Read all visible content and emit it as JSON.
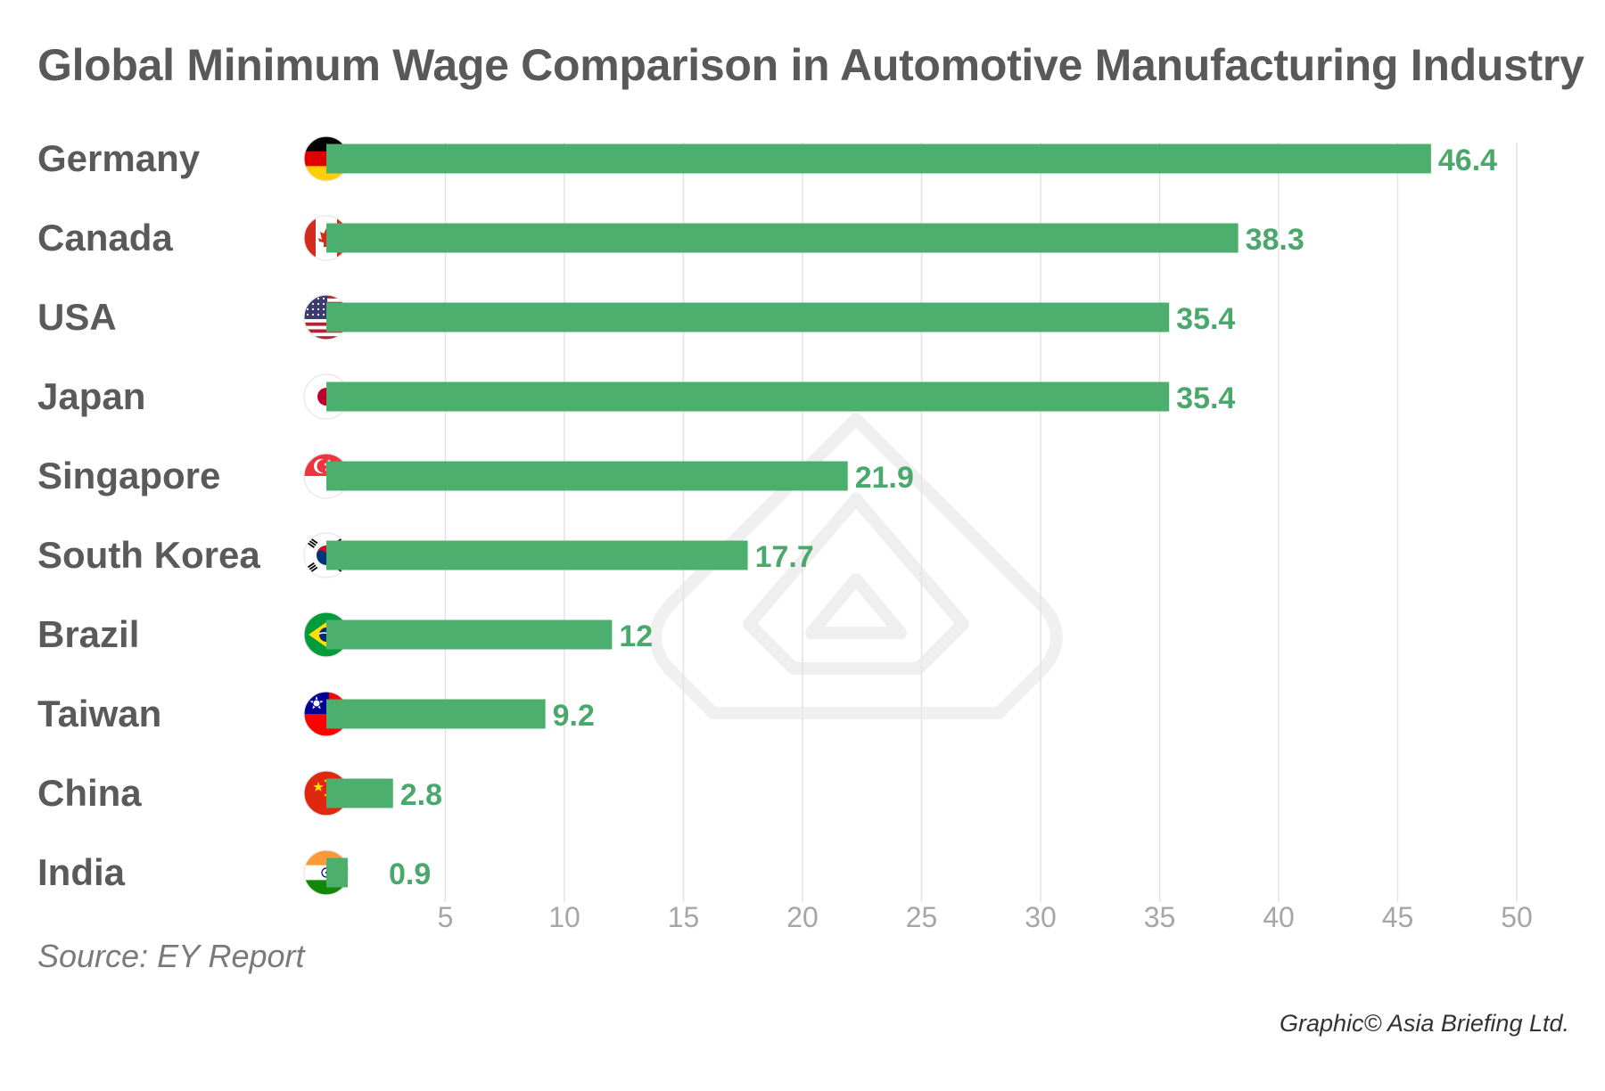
{
  "title": "Global Minimum Wage Comparison in Automotive Manufacturing Industry",
  "source": "Source: EY Report",
  "credit": "Graphic© Asia Briefing Ltd.",
  "colors": {
    "bar": "#4caf6e",
    "value_label": "#4aa86c",
    "category_label": "#5a5a5a",
    "grid": "#e3e3e3",
    "tick": "#a6a6a6"
  },
  "chart_data": {
    "type": "bar",
    "orientation": "horizontal",
    "title": "Global Minimum Wage Comparison in Automotive Manufacturing Industry",
    "categories": [
      "Germany",
      "Canada",
      "USA",
      "Japan",
      "Singapore",
      "South Korea",
      "Brazil",
      "Taiwan",
      "China",
      "India"
    ],
    "values": [
      46.4,
      38.3,
      35.4,
      35.4,
      21.9,
      17.7,
      12,
      9.2,
      2.8,
      0.9
    ],
    "value_labels": [
      "46.4",
      "38.3",
      "35.4",
      "35.4",
      "21.9",
      "17.7",
      "12",
      "9.2",
      "2.8",
      "0.9"
    ],
    "flag_icons": [
      "germany-flag-icon",
      "canada-flag-icon",
      "usa-flag-icon",
      "japan-flag-icon",
      "singapore-flag-icon",
      "south-korea-flag-icon",
      "brazil-flag-icon",
      "taiwan-flag-icon",
      "china-flag-icon",
      "india-flag-icon"
    ],
    "xticks": [
      5,
      10,
      15,
      20,
      25,
      30,
      35,
      40,
      45,
      50
    ],
    "xlim": [
      0,
      50
    ],
    "xlabel": "",
    "ylabel": "",
    "grid": true
  }
}
